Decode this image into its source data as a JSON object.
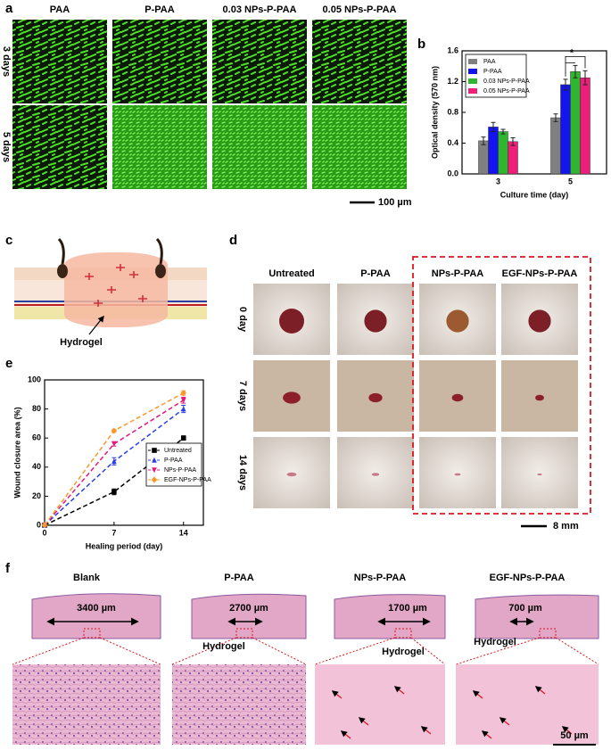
{
  "panels": {
    "a": {
      "label": "a",
      "columns": [
        "PAA",
        "P-PAA",
        "0.03 NPs-P-PAA",
        "0.05 NPs-P-PAA"
      ],
      "rows": [
        "3 days",
        "5 days"
      ],
      "scale_bar": "100 µm"
    },
    "c": {
      "label": "c",
      "annotation": "Hydrogel"
    },
    "d": {
      "label": "d",
      "columns": [
        "Untreated",
        "P-PAA",
        "NPs-P-PAA",
        "EGF-NPs-P-PAA"
      ],
      "rows": [
        "0 day",
        "7 days",
        "14 days"
      ],
      "scale_bar": "8 mm"
    },
    "f": {
      "label": "f",
      "columns": [
        "Blank",
        "P-PAA",
        "NPs-P-PAA",
        "EGF-NPs-P-PAA"
      ],
      "measurements": [
        "3400 µm",
        "2700 µm",
        "1700 µm",
        "700 µm"
      ],
      "hydrogel_labels": [
        "Hydrogel",
        "Hydrogel",
        "Hydrogel"
      ],
      "scale_bar": "50 µm"
    }
  },
  "chart_data": [
    {
      "type": "bar",
      "panel_label": "b",
      "y_label": "Optical density (570 nm)",
      "x_label": "Culture time (day)",
      "categories": [
        "3",
        "5"
      ],
      "series": [
        {
          "name": "PAA",
          "color": "#808080",
          "values": [
            0.43,
            0.73
          ],
          "errors": [
            0.05,
            0.05
          ]
        },
        {
          "name": "P-PAA",
          "color": "#1414f0",
          "values": [
            0.61,
            1.16
          ],
          "errors": [
            0.06,
            0.07
          ]
        },
        {
          "name": "0.03 NPs-P-PAA",
          "color": "#2fb52f",
          "values": [
            0.55,
            1.33
          ],
          "errors": [
            0.03,
            0.08
          ]
        },
        {
          "name": "0.05 NPs-P-PAA",
          "color": "#ee1f7a",
          "values": [
            0.42,
            1.25
          ],
          "errors": [
            0.05,
            0.09
          ]
        }
      ],
      "ylim": [
        0,
        1.6
      ],
      "yticks": [
        {
          "value": 0,
          "label": "0.0"
        },
        0.4,
        0.8,
        1.2,
        1.6
      ],
      "legend": "upper left",
      "significance": "*"
    },
    {
      "type": "line",
      "panel_label": "e",
      "y_label": "Wound closure area (%)",
      "x_label": "Healing period (day)",
      "x": [
        0,
        7,
        14
      ],
      "series": [
        {
          "name": "Untreated",
          "color": "#000000",
          "marker": "square",
          "values": [
            0,
            23,
            60
          ],
          "errors": [
            0,
            2,
            1.5
          ]
        },
        {
          "name": "P-PAA",
          "color": "#2b3fe8",
          "marker": "triangle-up",
          "values": [
            0,
            44,
            80
          ],
          "errors": [
            0,
            2.5,
            2.5
          ]
        },
        {
          "name": "NPs-P-PAA",
          "color": "#e6177d",
          "marker": "triangle-down",
          "values": [
            0,
            56,
            86
          ],
          "errors": [
            0,
            1.5,
            2
          ]
        },
        {
          "name": "EGF-NPs-P-PAA",
          "color": "#f89a2a",
          "marker": "diamond",
          "values": [
            0,
            65,
            91
          ],
          "errors": [
            0,
            1,
            1.5
          ]
        }
      ],
      "xlim": [
        0,
        16
      ],
      "xticks": [
        0,
        7,
        14
      ],
      "ylim": [
        0,
        100
      ],
      "yticks": [
        0,
        20,
        40,
        60,
        80,
        100
      ],
      "legend": "lower right"
    }
  ]
}
